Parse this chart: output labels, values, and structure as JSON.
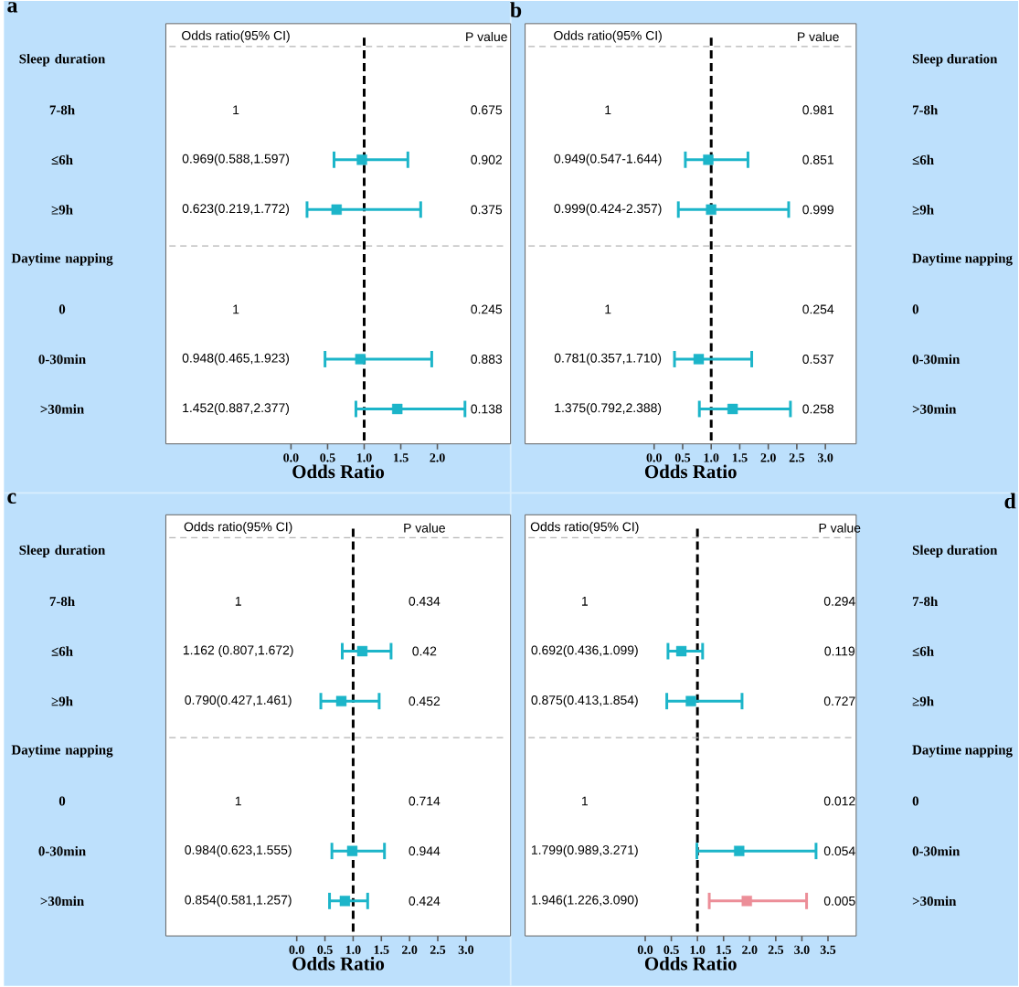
{
  "chart_data": [
    {
      "type": "scatter",
      "title": "a",
      "xlabel": "Odds Ratio",
      "orientation": "horizontal",
      "marker": "square",
      "categories": [
        "Sleep duration",
        "7-8h",
        "≤6h",
        "≥9h",
        "Daytime napping",
        "0",
        "0-30min",
        ">30min"
      ],
      "values": [
        null,
        null,
        0.969,
        0.623,
        null,
        null,
        0.948,
        1.452
      ],
      "errors": [
        null,
        null,
        [
          0.588,
          1.597
        ],
        [
          0.219,
          1.772
        ],
        null,
        null,
        [
          0.465,
          1.923
        ],
        [
          0.887,
          2.377
        ]
      ],
      "colors": [
        "#1cb5c9",
        "#1cb5c9",
        "#1cb5c9",
        "#1cb5c9",
        "#1cb5c9",
        "#1cb5c9",
        "#1cb5c9",
        "#1cb5c9"
      ],
      "annotations": [
        "Odds ratio(95% CI)",
        "P value",
        "1",
        "0.675",
        "0.969(0.588,1.597)",
        "0.902",
        "0.623(0.219,1.772)",
        "0.375",
        "1",
        "0.245",
        "0.948(0.465,1.923)",
        "0.883",
        "1.452(0.887,2.377)",
        "0.138"
      ],
      "xlim": [
        -1.71,
        3.0
      ],
      "xticks": [
        {
          "value": 0,
          "label": "0.0"
        },
        0.5,
        {
          "value": 1,
          "label": "1.0"
        },
        1.5,
        {
          "value": 2,
          "label": "2.0"
        }
      ],
      "ref_lines": [
        {
          "axis": "x",
          "value": 1,
          "color": "#000000",
          "line_style": "dashed"
        },
        {
          "axis": "y",
          "value": "Sleep duration",
          "color": "#b4b4b4",
          "line_style": "dashed"
        },
        {
          "axis": "y",
          "value": "Daytime napping",
          "color": "#b4b4b4",
          "line_style": "dashed"
        }
      ]
    },
    {
      "type": "scatter",
      "title": "b",
      "xlabel": "Odds Ratio",
      "orientation": "horizontal",
      "marker": "square",
      "categories": [
        "Sleep duration",
        "7-8h",
        "≤6h",
        "≥9h",
        "Daytime napping",
        "0",
        "0-30min",
        ">30min"
      ],
      "values": [
        null,
        null,
        0.949,
        0.999,
        null,
        null,
        0.781,
        1.375
      ],
      "errors": [
        null,
        null,
        [
          0.547,
          1.644
        ],
        [
          0.424,
          2.357
        ],
        null,
        null,
        [
          0.357,
          1.71
        ],
        [
          0.792,
          2.388
        ]
      ],
      "colors": [
        "#1cb5c9",
        "#1cb5c9",
        "#1cb5c9",
        "#1cb5c9",
        "#1cb5c9",
        "#1cb5c9",
        "#1cb5c9",
        "#1cb5c9"
      ],
      "annotations": [
        "Odds ratio(95% CI)",
        "P value",
        "1",
        "0.981",
        "0.949(0.547-1.644)",
        "0.851",
        "0.999(0.424-2.357)",
        "0.999",
        "1",
        "0.254",
        "0.781(0.357,1.710)",
        "0.537",
        "1.375(0.792,2.388)",
        "0.258"
      ],
      "xlim": [
        -2.26,
        3.54
      ],
      "xticks": [
        {
          "value": 0,
          "label": "0.0"
        },
        0.5,
        {
          "value": 1,
          "label": "1.0"
        },
        1.5,
        {
          "value": 2,
          "label": "2.0"
        },
        2.5,
        {
          "value": 3,
          "label": "3.0"
        }
      ],
      "ref_lines": [
        {
          "axis": "x",
          "value": 1,
          "color": "#000000",
          "line_style": "dashed"
        },
        {
          "axis": "y",
          "value": "Sleep duration",
          "color": "#b4b4b4",
          "line_style": "dashed"
        },
        {
          "axis": "y",
          "value": "Daytime napping",
          "color": "#b4b4b4",
          "line_style": "dashed"
        }
      ]
    },
    {
      "type": "scatter",
      "title": "c",
      "xlabel": "Odds Ratio",
      "orientation": "horizontal",
      "marker": "square",
      "categories": [
        "Sleep duration",
        "7-8h",
        "≤6h",
        "≥9h",
        "Daytime napping",
        "0",
        "0-30min",
        ">30min"
      ],
      "values": [
        null,
        null,
        1.162,
        0.79,
        null,
        null,
        0.984,
        0.854
      ],
      "errors": [
        null,
        null,
        [
          0.807,
          1.672
        ],
        [
          0.427,
          1.461
        ],
        null,
        null,
        [
          0.623,
          1.555
        ],
        [
          0.581,
          1.257
        ]
      ],
      "colors": [
        "#1cb5c9",
        "#1cb5c9",
        "#1cb5c9",
        "#1cb5c9",
        "#1cb5c9",
        "#1cb5c9",
        "#1cb5c9",
        "#1cb5c9"
      ],
      "annotations": [
        "Odds ratio(95% CI)",
        "P value",
        "1",
        "0.434",
        "1.162 (0.807,1.672)",
        "0.42",
        "0.790(0.427,1.461)",
        "0.452",
        "1",
        "0.714",
        "0.984(0.623,1.555)",
        "0.944",
        "0.854(0.581,1.257)",
        "0.424"
      ],
      "xlim": [
        -2.32,
        3.79
      ],
      "xticks": [
        {
          "value": 0,
          "label": "0.0"
        },
        0.5,
        {
          "value": 1,
          "label": "1.0"
        },
        1.5,
        {
          "value": 2,
          "label": "2.0"
        },
        2.5,
        {
          "value": 3,
          "label": "3.0"
        }
      ],
      "ref_lines": [
        {
          "axis": "x",
          "value": 1,
          "color": "#000000",
          "line_style": "dashed"
        },
        {
          "axis": "y",
          "value": "Sleep duration",
          "color": "#b4b4b4",
          "line_style": "dashed"
        },
        {
          "axis": "y",
          "value": "Daytime napping",
          "color": "#b4b4b4",
          "line_style": "dashed"
        }
      ]
    },
    {
      "type": "scatter",
      "title": "d",
      "xlabel": "Odds Ratio",
      "orientation": "horizontal",
      "marker": "square",
      "categories": [
        "Sleep duration",
        "7-8h",
        "≤6h",
        "≥9h",
        "Daytime napping",
        "0",
        "0-30min",
        ">30min"
      ],
      "values": [
        null,
        null,
        0.692,
        0.875,
        null,
        null,
        1.799,
        1.946
      ],
      "errors": [
        null,
        null,
        [
          0.436,
          1.099
        ],
        [
          0.413,
          1.854
        ],
        null,
        null,
        [
          0.989,
          3.271
        ],
        [
          1.226,
          3.09
        ]
      ],
      "colors": [
        "#1cb5c9",
        "#1cb5c9",
        "#1cb5c9",
        "#1cb5c9",
        "#1cb5c9",
        "#1cb5c9",
        "#1cb5c9",
        "#ec8e98"
      ],
      "annotations": [
        "Odds ratio(95% CI)",
        "P value",
        "1",
        "0.294",
        "0.692(0.436,1.099)",
        "0.119",
        "0.875(0.413,1.854)",
        "0.727",
        "1",
        "0.012",
        "1.799(0.989,3.271)",
        "0.054",
        "1.946(1.226,3.090)",
        "0.005"
      ],
      "xlim": [
        -2.3,
        4.04
      ],
      "xticks": [
        {
          "value": 0,
          "label": "0.0"
        },
        0.5,
        {
          "value": 1,
          "label": "1.0"
        },
        1.5,
        {
          "value": 2,
          "label": "2.0"
        },
        2.5,
        {
          "value": 3,
          "label": "3.0"
        },
        3.5
      ],
      "ref_lines": [
        {
          "axis": "x",
          "value": 1,
          "color": "#000000",
          "line_style": "dashed"
        },
        {
          "axis": "y",
          "value": "Sleep duration",
          "color": "#b4b4b4",
          "line_style": "dashed"
        },
        {
          "axis": "y",
          "value": "Daytime napping",
          "color": "#b4b4b4",
          "line_style": "dashed"
        }
      ]
    }
  ]
}
